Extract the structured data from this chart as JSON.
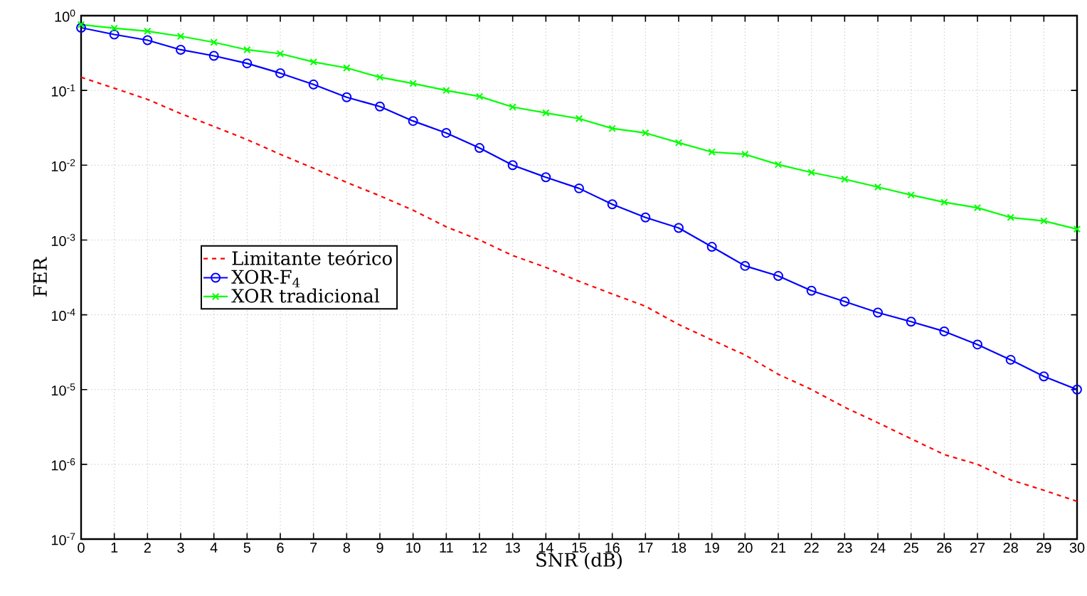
{
  "chart_data": {
    "type": "line",
    "xlabel": "SNR (dB)",
    "ylabel": "FER",
    "log": "y",
    "grid": true,
    "legend": "left",
    "x": [
      0,
      1,
      2,
      3,
      4,
      5,
      6,
      7,
      8,
      9,
      10,
      11,
      12,
      13,
      14,
      15,
      16,
      17,
      18,
      19,
      20,
      21,
      22,
      23,
      24,
      25,
      26,
      27,
      28,
      29,
      30
    ],
    "xlim": [
      0,
      30
    ],
    "xticks": [
      0,
      1,
      2,
      3,
      4,
      5,
      6,
      7,
      8,
      9,
      10,
      11,
      12,
      13,
      14,
      15,
      16,
      17,
      18,
      19,
      20,
      21,
      22,
      23,
      24,
      25,
      26,
      27,
      28,
      29,
      30
    ],
    "ylim": [
      1e-07,
      1
    ],
    "yticks": [
      {
        "value": 1e-07,
        "label": "10$^{-7}$"
      },
      {
        "value": 1e-06,
        "label": "10$^{-6}$"
      },
      {
        "value": 1e-05,
        "label": "10$^{-5}$"
      },
      {
        "value": 0.0001,
        "label": "10$^{-4}$"
      },
      {
        "value": 0.001,
        "label": "10$^{-3}$"
      },
      {
        "value": 0.01,
        "label": "10$^{-2}$"
      },
      {
        "value": 0.1,
        "label": "10$^{-1}$"
      },
      {
        "value": 1,
        "label": "10$^{0}$"
      }
    ],
    "series": [
      {
        "name": "Limitante teórico",
        "color": "#ff0000",
        "marker": "none",
        "line_style": "dashed",
        "values": [
          0.15,
          0.107,
          0.076,
          0.049,
          0.033,
          0.022,
          0.014,
          0.0091,
          0.0059,
          0.0039,
          0.0025,
          0.0015,
          0.001,
          0.00062,
          0.00043,
          0.00028,
          0.00019,
          0.00013,
          7.4e-05,
          4.6e-05,
          2.9e-05,
          1.6e-05,
          1e-05,
          5.8e-06,
          3.6e-06,
          2.2e-06,
          1.35e-06,
          1e-06,
          6.2e-07,
          4.5e-07,
          3.2e-07
        ]
      },
      {
        "name": "XOR-F$_{4}$",
        "color": "#0000ff",
        "marker": "circle",
        "line_style": "solid",
        "values": [
          0.69,
          0.56,
          0.47,
          0.35,
          0.29,
          0.23,
          0.17,
          0.12,
          0.081,
          0.061,
          0.039,
          0.027,
          0.017,
          0.01,
          0.0069,
          0.0049,
          0.003,
          0.002,
          0.00145,
          0.00081,
          0.00045,
          0.00033,
          0.00021,
          0.00015,
          0.000107,
          8.1e-05,
          6e-05,
          4e-05,
          2.5e-05,
          1.5e-05,
          1e-05
        ]
      },
      {
        "name": "XOR tradicional",
        "color": "#00ff00",
        "marker": "cross",
        "line_style": "solid",
        "values": [
          0.76,
          0.68,
          0.62,
          0.53,
          0.44,
          0.35,
          0.31,
          0.24,
          0.2,
          0.15,
          0.124,
          0.1,
          0.083,
          0.06,
          0.05,
          0.042,
          0.031,
          0.027,
          0.02,
          0.015,
          0.014,
          0.0102,
          0.008,
          0.0065,
          0.0051,
          0.004,
          0.0032,
          0.0027,
          0.002,
          0.0018,
          0.0014
        ]
      }
    ]
  }
}
